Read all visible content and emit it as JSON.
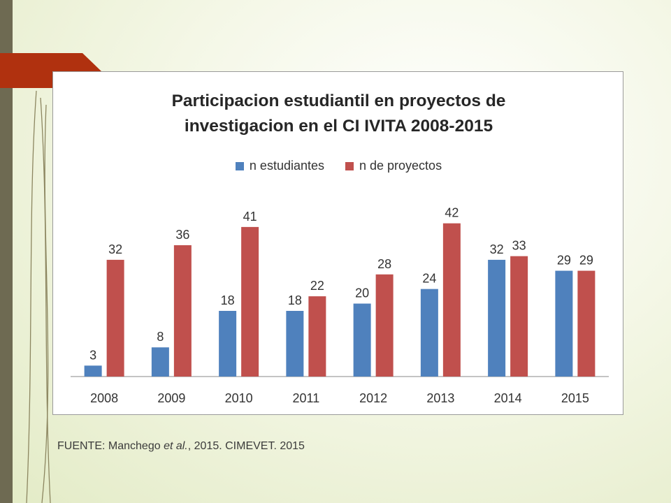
{
  "colors": {
    "series_1": "#4f81bd",
    "series_2": "#c0504d",
    "slide_accent": "#b0310f",
    "slide_bar": "#6e6a52"
  },
  "source": {
    "prefix": "FUENTE: Manchego ",
    "italic": "et al.",
    "suffix": ", 2015.  CIMEVET. 2015"
  },
  "chart_data": {
    "type": "bar",
    "title_lines": [
      "Participacion  estudiantil en proyectos de",
      "investigacion en el CI IVITA 2008-2015"
    ],
    "categories": [
      "2008",
      "2009",
      "2010",
      "2011",
      "2012",
      "2013",
      "2014",
      "2015"
    ],
    "series": [
      {
        "name": "n estudiantes",
        "values": [
          3,
          8,
          18,
          18,
          20,
          24,
          32,
          29
        ]
      },
      {
        "name": "n de proyectos",
        "values": [
          32,
          36,
          41,
          22,
          28,
          42,
          33,
          29
        ]
      }
    ],
    "ylim": [
      0,
      45
    ],
    "grid": false,
    "legend_position": "top",
    "data_labels": true
  }
}
